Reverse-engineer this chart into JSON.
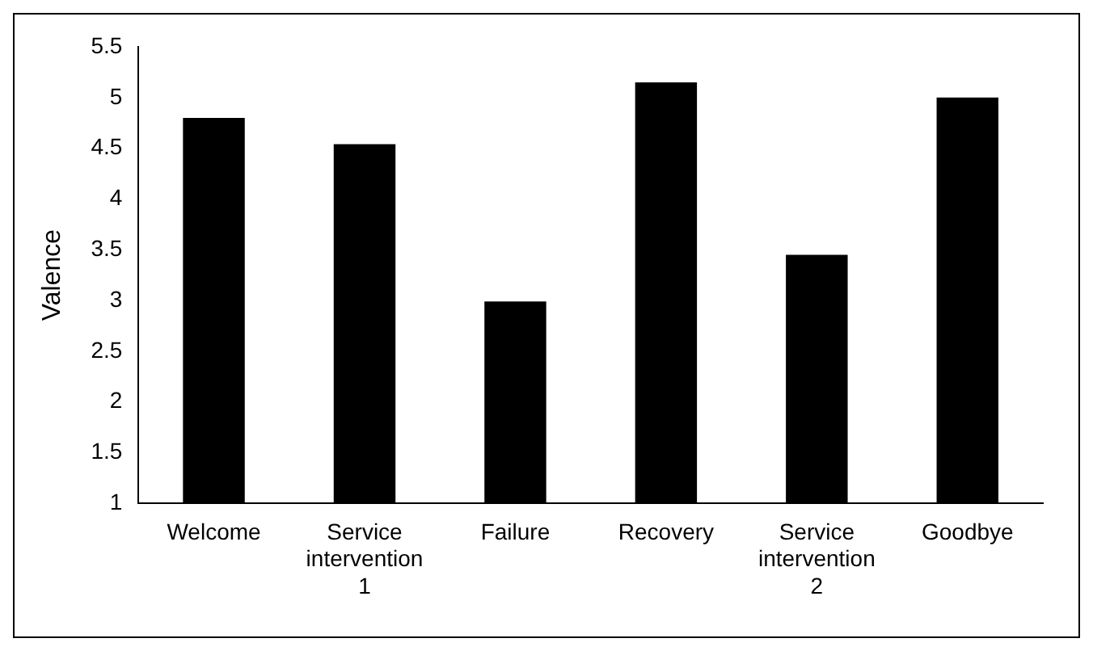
{
  "chart_data": {
    "type": "bar",
    "ylabel": "Valence",
    "categories": [
      "Welcome",
      "Service intervention 1",
      "Failure",
      "Recovery",
      "Service intervention 2",
      "Goodbye"
    ],
    "values": [
      4.8,
      4.54,
      2.99,
      5.15,
      3.45,
      5.0
    ],
    "color": "#000000",
    "ylim": [
      1,
      5.5
    ],
    "yticks": [
      1,
      1.5,
      2,
      2.5,
      3,
      3.5,
      4,
      4.5,
      5,
      5.5
    ],
    "grid": false,
    "legend": false
  }
}
